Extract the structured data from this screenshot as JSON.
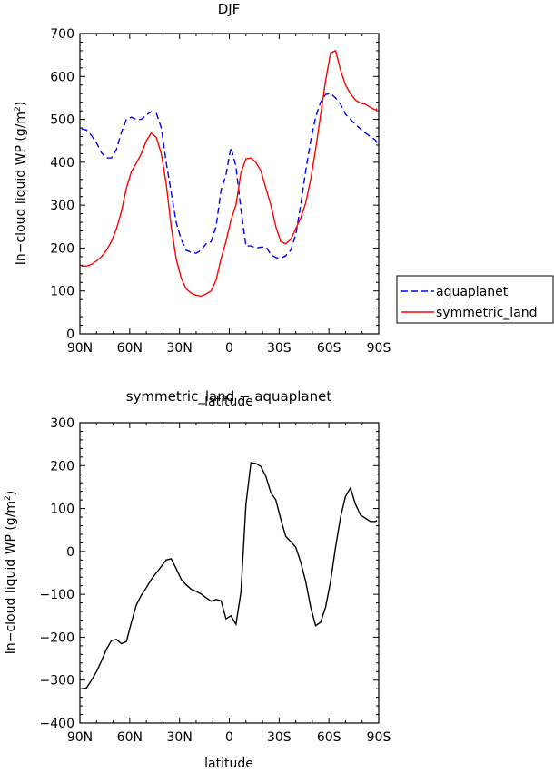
{
  "chart_data": [
    {
      "type": "line",
      "title": "DJF",
      "xlabel": "latitude",
      "ylabel": "In−cloud liquid WP (g/m",
      "ylabel_sup": "2",
      "ylabel_close": ")",
      "xlim": [
        90,
        -90
      ],
      "ylim": [
        0,
        700
      ],
      "x_ticks": [
        90,
        60,
        30,
        0,
        -30,
        -60,
        -90
      ],
      "x_tick_labels": [
        "90N",
        "60N",
        "30N",
        "0",
        "30S",
        "60S",
        "90S"
      ],
      "y_ticks": [
        0,
        100,
        200,
        300,
        400,
        500,
        600,
        700
      ],
      "y_tick_labels": [
        "0",
        "100",
        "200",
        "300",
        "400",
        "500",
        "600",
        "700"
      ],
      "legend": "right",
      "series": [
        {
          "name": "aquaplanet",
          "color": "#0000ff",
          "dash": "dashed",
          "x": [
            89,
            86,
            83,
            80,
            77,
            74,
            71,
            68,
            65,
            62,
            59,
            56,
            53,
            50,
            47,
            44,
            41,
            38,
            35,
            32,
            29,
            26,
            23,
            20,
            17,
            14,
            11,
            8,
            5,
            2,
            -1,
            -4,
            -7,
            -10,
            -13,
            -16,
            -19,
            -22,
            -25,
            -28,
            -31,
            -34,
            -37,
            -40,
            -43,
            -46,
            -49,
            -52,
            -55,
            -58,
            -61,
            -64,
            -67,
            -70,
            -73,
            -76,
            -79,
            -82,
            -85,
            -88,
            -89
          ],
          "y": [
            478,
            475,
            462,
            445,
            422,
            410,
            410,
            430,
            470,
            500,
            505,
            500,
            500,
            510,
            518,
            515,
            480,
            400,
            330,
            260,
            220,
            195,
            190,
            188,
            195,
            210,
            215,
            250,
            335,
            370,
            435,
            390,
            290,
            205,
            205,
            200,
            202,
            203,
            185,
            178,
            176,
            182,
            195,
            230,
            300,
            380,
            450,
            505,
            540,
            558,
            560,
            550,
            535,
            512,
            500,
            488,
            478,
            468,
            460,
            452,
            445
          ]
        },
        {
          "name": "symmetric_land",
          "color": "#ff0000",
          "dash": "solid",
          "x": [
            89,
            86,
            83,
            80,
            77,
            74,
            71,
            68,
            65,
            62,
            59,
            56,
            53,
            50,
            47,
            44,
            41,
            38,
            35,
            32,
            29,
            26,
            23,
            20,
            17,
            14,
            11,
            8,
            5,
            2,
            -1,
            -4,
            -7,
            -10,
            -13,
            -16,
            -19,
            -22,
            -25,
            -28,
            -31,
            -34,
            -37,
            -40,
            -43,
            -46,
            -49,
            -52,
            -55,
            -58,
            -61,
            -64,
            -67,
            -70,
            -73,
            -76,
            -79,
            -82,
            -85,
            -88,
            -89
          ],
          "y": [
            158,
            158,
            162,
            170,
            180,
            195,
            215,
            245,
            285,
            340,
            378,
            398,
            420,
            450,
            468,
            458,
            420,
            350,
            250,
            175,
            130,
            105,
            95,
            90,
            88,
            93,
            100,
            125,
            175,
            215,
            265,
            300,
            375,
            408,
            410,
            400,
            380,
            340,
            300,
            250,
            215,
            210,
            220,
            245,
            270,
            305,
            360,
            430,
            510,
            590,
            655,
            660,
            615,
            580,
            560,
            545,
            538,
            535,
            528,
            522,
            525
          ]
        }
      ]
    },
    {
      "type": "line",
      "title": "symmetric_land − aquaplanet",
      "xlabel": "latitude",
      "ylabel": "In−cloud liquid WP (g/m",
      "ylabel_sup": "2",
      "ylabel_close": ")",
      "xlim": [
        90,
        -90
      ],
      "ylim": [
        -400,
        300
      ],
      "x_ticks": [
        90,
        60,
        30,
        0,
        -30,
        -60,
        -90
      ],
      "x_tick_labels": [
        "90N",
        "60N",
        "30N",
        "0",
        "30S",
        "60S",
        "90S"
      ],
      "y_ticks": [
        -400,
        -300,
        -200,
        -100,
        0,
        100,
        200,
        300
      ],
      "y_tick_labels": [
        "−400",
        "−300",
        "−200",
        "−100",
        "0",
        "100",
        "200",
        "300"
      ],
      "series": [
        {
          "color": "#000000",
          "dash": "solid",
          "x": [
            89,
            86,
            83,
            80,
            77,
            74,
            71,
            68,
            65,
            62,
            59,
            56,
            53,
            50,
            47,
            44,
            41,
            38,
            35,
            32,
            29,
            26,
            23,
            20,
            17,
            14,
            11,
            8,
            5,
            2,
            -1,
            -4,
            -7,
            -10,
            -13,
            -16,
            -19,
            -22,
            -25,
            -28,
            -31,
            -34,
            -37,
            -40,
            -43,
            -46,
            -49,
            -52,
            -55,
            -58,
            -61,
            -64,
            -67,
            -70,
            -73,
            -76,
            -79,
            -82,
            -85,
            -88,
            -89
          ],
          "y": [
            -320,
            -318,
            -300,
            -280,
            -255,
            -228,
            -208,
            -205,
            -215,
            -210,
            -165,
            -125,
            -102,
            -85,
            -65,
            -50,
            -35,
            -20,
            -17,
            -40,
            -65,
            -78,
            -88,
            -93,
            -99,
            -108,
            -116,
            -112,
            -115,
            -157,
            -150,
            -170,
            -95,
            110,
            207,
            205,
            198,
            175,
            137,
            120,
            75,
            35,
            23,
            10,
            -25,
            -70,
            -130,
            -173,
            -165,
            -130,
            -70,
            10,
            80,
            128,
            148,
            110,
            85,
            77,
            70,
            70,
            72
          ]
        }
      ]
    }
  ]
}
